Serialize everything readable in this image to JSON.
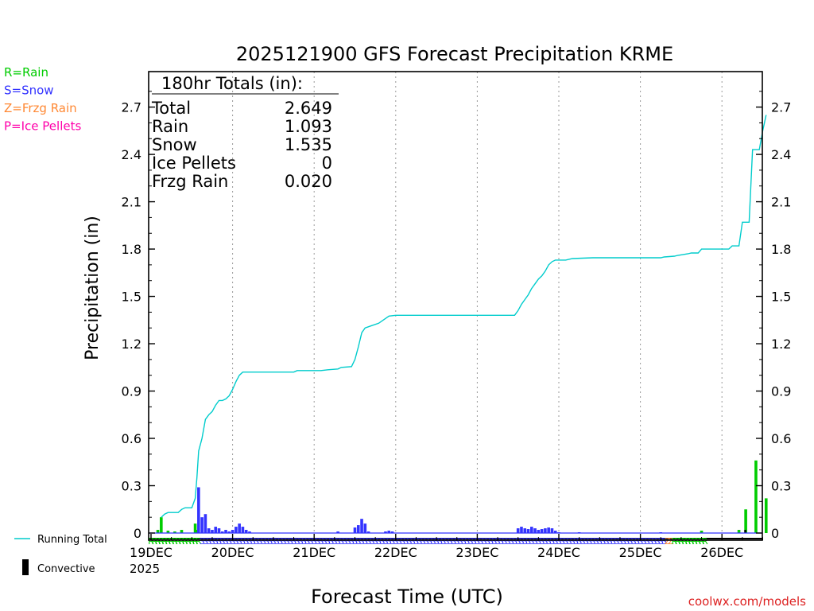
{
  "chart_data": {
    "type": "bar",
    "title": "2025121900 GFS Forecast Precipitation KRME",
    "xlabel": "Forecast Time (UTC)",
    "ylabel": "Precipitation (in)",
    "ylim": [
      0,
      2.9
    ],
    "yticks": [
      "0",
      "0.3",
      "0.6",
      "0.9",
      "1.2",
      "1.5",
      "1.8",
      "2.1",
      "2.4",
      "2.7"
    ],
    "xlim_hours": [
      0,
      183
    ],
    "xticks": [
      {
        "label": "19DEC",
        "hour": 0
      },
      {
        "label": "20DEC",
        "hour": 24
      },
      {
        "label": "21DEC",
        "hour": 48
      },
      {
        "label": "22DEC",
        "hour": 72
      },
      {
        "label": "23DEC",
        "hour": 96
      },
      {
        "label": "24DEC",
        "hour": 120
      },
      {
        "label": "25DEC",
        "hour": 144
      },
      {
        "label": "26DEC",
        "hour": 168
      }
    ],
    "year_label": "2025",
    "legend_types": [
      {
        "label": "R=Rain",
        "color": "#00cc00"
      },
      {
        "label": "S=Snow",
        "color": "#3333ff"
      },
      {
        "label": "Z=Frzg Rain",
        "color": "#ff8833"
      },
      {
        "label": "P=Ice Pellets",
        "color": "#ff00aa"
      }
    ],
    "legend_series": {
      "running_total": "Running Total",
      "convective": "Convective"
    },
    "totals_box": {
      "title": "180hr Totals (in):",
      "rows": [
        {
          "label": "Total",
          "value": "2.649"
        },
        {
          "label": "Rain",
          "value": "1.093"
        },
        {
          "label": "Snow",
          "value": "1.535"
        },
        {
          "label": "Ice Pellets",
          "value": "0"
        },
        {
          "label": "Frzg Rain",
          "value": "0.020"
        }
      ]
    },
    "series": [
      {
        "name": "Rain (hourly)",
        "color": "#00cc00",
        "points": [
          [
            2,
            0.02
          ],
          [
            3,
            0.1
          ],
          [
            5,
            0.015
          ],
          [
            7,
            0.01
          ],
          [
            9,
            0.02
          ],
          [
            13,
            0.06
          ],
          [
            13.6,
            0.02
          ],
          [
            162,
            0.015
          ],
          [
            173,
            0.02
          ],
          [
            175,
            0.15
          ],
          [
            178,
            0.46
          ],
          [
            181,
            0.22
          ]
        ]
      },
      {
        "name": "Snow (hourly)",
        "color": "#3333ff",
        "points": [
          [
            14,
            0.29
          ],
          [
            15,
            0.1
          ],
          [
            16,
            0.12
          ],
          [
            17,
            0.03
          ],
          [
            18,
            0.02
          ],
          [
            19,
            0.04
          ],
          [
            20,
            0.03
          ],
          [
            21,
            0.01
          ],
          [
            22,
            0.02
          ],
          [
            23,
            0.01
          ],
          [
            24,
            0.02
          ],
          [
            25,
            0.04
          ],
          [
            26,
            0.06
          ],
          [
            27,
            0.04
          ],
          [
            28,
            0.02
          ],
          [
            29,
            0.01
          ],
          [
            55,
            0.01
          ],
          [
            60,
            0.035
          ],
          [
            61,
            0.05
          ],
          [
            62,
            0.09
          ],
          [
            63,
            0.06
          ],
          [
            64,
            0.01
          ],
          [
            69,
            0.01
          ],
          [
            70,
            0.015
          ],
          [
            71,
            0.01
          ],
          [
            108,
            0.03
          ],
          [
            109,
            0.04
          ],
          [
            110,
            0.03
          ],
          [
            111,
            0.025
          ],
          [
            112,
            0.04
          ],
          [
            113,
            0.03
          ],
          [
            114,
            0.02
          ],
          [
            115,
            0.025
          ],
          [
            116,
            0.03
          ],
          [
            117,
            0.035
          ],
          [
            118,
            0.03
          ],
          [
            119,
            0.015
          ],
          [
            120,
            0.005
          ],
          [
            126,
            0.005
          ],
          [
            150,
            0.005
          ]
        ]
      },
      {
        "name": "Convective",
        "color": "#000000",
        "points": [
          [
            175,
            0.02
          ]
        ]
      },
      {
        "name": "Running Total",
        "color": "#00cccc",
        "points": [
          [
            3,
            0.1
          ],
          [
            4,
            0.12
          ],
          [
            5,
            0.13
          ],
          [
            8,
            0.13
          ],
          [
            9,
            0.15
          ],
          [
            10,
            0.16
          ],
          [
            12,
            0.16
          ],
          [
            13,
            0.22
          ],
          [
            13.5,
            0.35
          ],
          [
            14,
            0.52
          ],
          [
            15,
            0.6
          ],
          [
            16,
            0.72
          ],
          [
            17,
            0.75
          ],
          [
            18,
            0.77
          ],
          [
            19,
            0.81
          ],
          [
            20,
            0.84
          ],
          [
            21,
            0.84
          ],
          [
            22,
            0.85
          ],
          [
            23,
            0.87
          ],
          [
            24,
            0.91
          ],
          [
            25,
            0.96
          ],
          [
            26,
            1.0
          ],
          [
            27,
            1.02
          ],
          [
            30,
            1.02
          ],
          [
            42,
            1.02
          ],
          [
            43,
            1.03
          ],
          [
            50,
            1.03
          ],
          [
            52,
            1.035
          ],
          [
            55,
            1.04
          ],
          [
            56,
            1.05
          ],
          [
            59,
            1.055
          ],
          [
            60,
            1.1
          ],
          [
            61,
            1.18
          ],
          [
            62,
            1.27
          ],
          [
            63,
            1.3
          ],
          [
            65,
            1.315
          ],
          [
            67,
            1.33
          ],
          [
            69,
            1.36
          ],
          [
            70,
            1.375
          ],
          [
            72,
            1.38
          ],
          [
            107,
            1.38
          ],
          [
            108,
            1.41
          ],
          [
            109,
            1.45
          ],
          [
            110,
            1.48
          ],
          [
            111,
            1.51
          ],
          [
            112,
            1.55
          ],
          [
            113,
            1.58
          ],
          [
            114,
            1.61
          ],
          [
            115,
            1.63
          ],
          [
            116,
            1.66
          ],
          [
            117,
            1.7
          ],
          [
            118,
            1.72
          ],
          [
            119,
            1.73
          ],
          [
            122,
            1.73
          ],
          [
            124,
            1.74
          ],
          [
            130,
            1.745
          ],
          [
            150,
            1.745
          ],
          [
            151,
            1.75
          ],
          [
            154,
            1.755
          ],
          [
            155,
            1.76
          ],
          [
            158,
            1.77
          ],
          [
            159,
            1.775
          ],
          [
            161,
            1.775
          ],
          [
            162,
            1.8
          ],
          [
            170,
            1.8
          ],
          [
            171,
            1.82
          ],
          [
            173,
            1.82
          ],
          [
            174,
            1.97
          ],
          [
            176,
            1.97
          ],
          [
            177,
            2.43
          ],
          [
            179,
            2.43
          ],
          [
            180,
            2.55
          ],
          [
            181,
            2.65
          ]
        ]
      }
    ],
    "precip_type_letters": "RRRRRRRRRRRRRRRSSSSSSSSSSSSSSSSSSSSSSSSSSSSSSSSSSSSSSSSSSSSSSSSSSSSSSSSSSSSSSSSSSSSSSSSSSSSSSSSSSSSSSSSSSSSSSSSSSSSSSSSSSSSSSSSSSSSSSSSSSSSSSSSSSSSSSSSSZZRRRRRRRRRR",
    "watermark": "coolwx.com/models"
  }
}
